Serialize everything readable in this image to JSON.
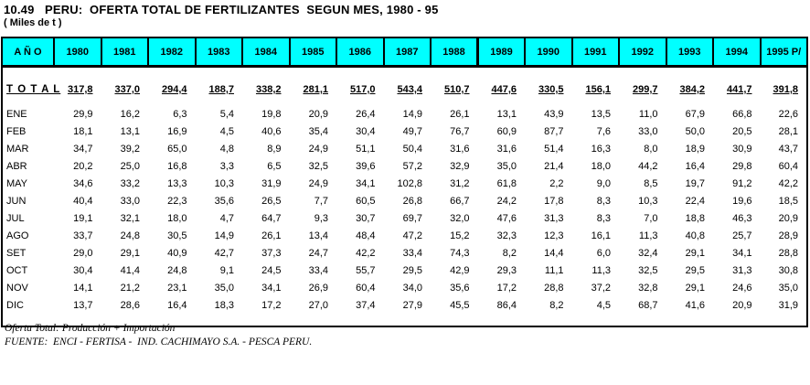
{
  "title": "10.49   PERU:  OFERTA TOTAL DE FERTILIZANTES  SEGUN MES, 1980 - 95",
  "subtitle": "( Miles de t )",
  "colors": {
    "header_bg": "#00FFFF",
    "border": "#000000",
    "page_bg": "#FFFFFF"
  },
  "table": {
    "corner_label": "A Ñ O",
    "years": [
      "1980",
      "1981",
      "1982",
      "1983",
      "1984",
      "1985",
      "1986",
      "1987",
      "1988",
      "1989",
      "1990",
      "1991",
      "1992",
      "1993",
      "1994",
      "1995 P/"
    ],
    "thick_divider_before_year": "1989",
    "total_label": "T O T A L",
    "totals": [
      "317,8",
      "337,0",
      "294,4",
      "188,7",
      "338,2",
      "281,1",
      "517,0",
      "543,4",
      "510,7",
      "447,6",
      "330,5",
      "156,1",
      "299,7",
      "384,2",
      "441,7",
      "391,8"
    ],
    "rows": [
      {
        "label": "ENE",
        "values": [
          "29,9",
          "16,2",
          "6,3",
          "5,4",
          "19,8",
          "20,9",
          "26,4",
          "14,9",
          "26,1",
          "13,1",
          "43,9",
          "13,5",
          "11,0",
          "67,9",
          "66,8",
          "22,6"
        ]
      },
      {
        "label": "FEB",
        "values": [
          "18,1",
          "13,1",
          "16,9",
          "4,5",
          "40,6",
          "35,4",
          "30,4",
          "49,7",
          "76,7",
          "60,9",
          "87,7",
          "7,6",
          "33,0",
          "50,0",
          "20,5",
          "28,1"
        ]
      },
      {
        "label": "MAR",
        "values": [
          "34,7",
          "39,2",
          "65,0",
          "4,8",
          "8,9",
          "24,9",
          "51,1",
          "50,4",
          "31,6",
          "31,6",
          "51,4",
          "16,3",
          "8,0",
          "18,9",
          "30,9",
          "43,7"
        ]
      },
      {
        "label": "ABR",
        "values": [
          "20,2",
          "25,0",
          "16,8",
          "3,3",
          "6,5",
          "32,5",
          "39,6",
          "57,2",
          "32,9",
          "35,0",
          "21,4",
          "18,0",
          "44,2",
          "16,4",
          "29,8",
          "60,4"
        ]
      },
      {
        "label": "MAY",
        "values": [
          "34,6",
          "33,2",
          "13,3",
          "10,3",
          "31,9",
          "24,9",
          "34,1",
          "102,8",
          "31,2",
          "61,8",
          "2,2",
          "9,0",
          "8,5",
          "19,7",
          "91,2",
          "42,2"
        ]
      },
      {
        "label": "JUN",
        "values": [
          "40,4",
          "33,0",
          "22,3",
          "35,6",
          "26,5",
          "7,7",
          "60,5",
          "26,8",
          "66,7",
          "24,2",
          "17,8",
          "8,3",
          "10,3",
          "22,4",
          "19,6",
          "18,5"
        ]
      },
      {
        "label": "JUL",
        "values": [
          "19,1",
          "32,1",
          "18,0",
          "4,7",
          "64,7",
          "9,3",
          "30,7",
          "69,7",
          "32,0",
          "47,6",
          "31,3",
          "8,3",
          "7,0",
          "18,8",
          "46,3",
          "20,9"
        ]
      },
      {
        "label": "AGO",
        "values": [
          "33,7",
          "24,8",
          "30,5",
          "14,9",
          "26,1",
          "13,4",
          "48,4",
          "47,2",
          "15,2",
          "32,3",
          "12,3",
          "16,1",
          "11,3",
          "40,8",
          "25,7",
          "28,9"
        ]
      },
      {
        "label": "SET",
        "values": [
          "29,0",
          "29,1",
          "40,9",
          "42,7",
          "37,3",
          "24,7",
          "42,2",
          "33,4",
          "74,3",
          "8,2",
          "14,4",
          "6,0",
          "32,4",
          "29,1",
          "34,1",
          "28,8"
        ]
      },
      {
        "label": "OCT",
        "values": [
          "30,4",
          "41,4",
          "24,8",
          "9,1",
          "24,5",
          "33,4",
          "55,7",
          "29,5",
          "42,9",
          "29,3",
          "11,1",
          "11,3",
          "32,5",
          "29,5",
          "31,3",
          "30,8"
        ]
      },
      {
        "label": "NOV",
        "values": [
          "14,1",
          "21,2",
          "23,1",
          "35,0",
          "34,1",
          "26,9",
          "60,4",
          "34,0",
          "35,6",
          "17,2",
          "28,8",
          "37,2",
          "32,8",
          "29,1",
          "24,6",
          "35,0"
        ]
      },
      {
        "label": "DIC",
        "values": [
          "13,7",
          "28,6",
          "16,4",
          "18,3",
          "17,2",
          "27,0",
          "37,4",
          "27,9",
          "45,5",
          "86,4",
          "8,2",
          "4,5",
          "68,7",
          "41,6",
          "20,9",
          "31,9"
        ]
      }
    ]
  },
  "footer": {
    "note": "Oferta Total: Producción + Importación",
    "source": "FUENTE:  ENCI - FERTISA -  IND. CACHIMAYO S.A. - PESCA PERU."
  }
}
